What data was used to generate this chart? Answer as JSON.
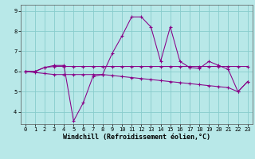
{
  "title": "",
  "xlabel": "Windchill (Refroidissement éolien,°C)",
  "ylabel": "",
  "background_color": "#b8e8e8",
  "line_color": "#880088",
  "grid_color": "#88cccc",
  "x": [
    0,
    1,
    2,
    3,
    4,
    5,
    6,
    7,
    8,
    9,
    10,
    11,
    12,
    13,
    14,
    15,
    16,
    17,
    18,
    19,
    20,
    21,
    22,
    23
  ],
  "y_main": [
    6.0,
    6.0,
    6.2,
    6.3,
    6.3,
    3.55,
    4.45,
    5.75,
    5.85,
    6.9,
    7.75,
    8.7,
    8.7,
    8.2,
    6.5,
    8.2,
    6.5,
    6.2,
    6.15,
    6.5,
    6.3,
    6.1,
    5.0,
    5.5
  ],
  "y_flat": [
    6.0,
    6.0,
    6.2,
    6.25,
    6.25,
    6.25,
    6.25,
    6.25,
    6.25,
    6.25,
    6.25,
    6.25,
    6.25,
    6.25,
    6.25,
    6.25,
    6.25,
    6.25,
    6.25,
    6.25,
    6.25,
    6.25,
    6.25,
    6.25
  ],
  "y_decline": [
    6.0,
    5.95,
    5.9,
    5.85,
    5.85,
    5.85,
    5.85,
    5.85,
    5.85,
    5.8,
    5.75,
    5.7,
    5.65,
    5.6,
    5.55,
    5.5,
    5.45,
    5.4,
    5.35,
    5.3,
    5.25,
    5.2,
    5.0,
    5.5
  ],
  "ylim": [
    3.4,
    9.3
  ],
  "xlim": [
    -0.5,
    23.5
  ],
  "yticks": [
    4,
    5,
    6,
    7,
    8,
    9
  ],
  "xticks": [
    0,
    1,
    2,
    3,
    4,
    5,
    6,
    7,
    8,
    9,
    10,
    11,
    12,
    13,
    14,
    15,
    16,
    17,
    18,
    19,
    20,
    21,
    22,
    23
  ],
  "tick_fontsize": 5.0,
  "xlabel_fontsize": 6.0,
  "marker": "+",
  "markersize": 3.5,
  "linewidth": 0.75
}
